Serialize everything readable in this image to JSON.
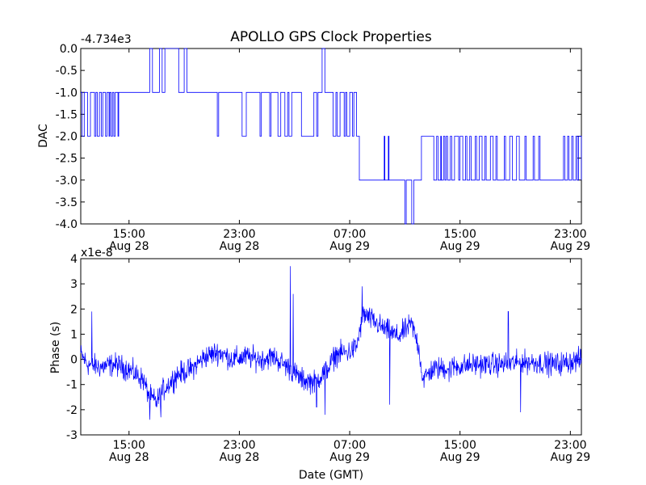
{
  "figure_title": "APOLLO GPS Clock Properties",
  "chart_data": [
    {
      "type": "line",
      "title": "APOLLO GPS Clock Properties",
      "ylabel": "DAC",
      "xlabel": "",
      "offset_label": "-4.734e3",
      "ylim": [
        -4.0,
        0.0
      ],
      "xlim_hours": [
        11.5,
        47.8
      ],
      "y_ticks": [
        0.0,
        -0.5,
        -1.0,
        -1.5,
        -2.0,
        -2.5,
        -3.0,
        -3.5,
        -4.0
      ],
      "y_tick_labels": [
        "0.0",
        "-0.5",
        "-1.0",
        "-1.5",
        "-2.0",
        "-2.5",
        "-3.0",
        "-3.5",
        "-4.0"
      ],
      "x_ticks_hours": [
        15,
        23,
        31,
        39,
        47
      ],
      "x_tick_labels": [
        {
          "time": "15:00",
          "date": "Aug 28"
        },
        {
          "time": "23:00",
          "date": "Aug 28"
        },
        {
          "time": "07:00",
          "date": "Aug 29"
        },
        {
          "time": "15:00",
          "date": "Aug 29"
        },
        {
          "time": "23:00",
          "date": "Aug 29"
        }
      ],
      "series": [
        {
          "name": "DAC",
          "color": "#0000ff",
          "steps": [
            [
              11.5,
              -1
            ],
            [
              11.6,
              -2
            ],
            [
              11.75,
              -1
            ],
            [
              12.0,
              -2
            ],
            [
              12.2,
              -1
            ],
            [
              12.5,
              -2
            ],
            [
              12.6,
              -1
            ],
            [
              12.7,
              -2
            ],
            [
              12.85,
              -1
            ],
            [
              13.0,
              -2
            ],
            [
              13.1,
              -1
            ],
            [
              13.3,
              -2
            ],
            [
              13.4,
              -1
            ],
            [
              13.55,
              -2
            ],
            [
              13.6,
              -1
            ],
            [
              13.7,
              -2
            ],
            [
              13.8,
              -1
            ],
            [
              13.9,
              -2
            ],
            [
              14.0,
              -1
            ],
            [
              14.2,
              -2
            ],
            [
              14.25,
              -1
            ],
            [
              16.5,
              0
            ],
            [
              16.7,
              -1
            ],
            [
              17.2,
              0
            ],
            [
              17.4,
              -1
            ],
            [
              17.6,
              0
            ],
            [
              18.6,
              -1
            ],
            [
              19.0,
              0
            ],
            [
              19.2,
              -1
            ],
            [
              21.4,
              -2
            ],
            [
              21.5,
              -1
            ],
            [
              23.2,
              -2
            ],
            [
              23.5,
              -1
            ],
            [
              24.5,
              -2
            ],
            [
              24.6,
              -1
            ],
            [
              25.2,
              -2
            ],
            [
              25.3,
              -1
            ],
            [
              25.8,
              -2
            ],
            [
              26.0,
              -1
            ],
            [
              26.3,
              -2
            ],
            [
              26.5,
              -1
            ],
            [
              26.6,
              -2
            ],
            [
              26.8,
              -1
            ],
            [
              27.5,
              -2
            ],
            [
              28.4,
              -1
            ],
            [
              28.6,
              -2
            ],
            [
              28.7,
              -1
            ],
            [
              29.0,
              0
            ],
            [
              29.2,
              -1
            ],
            [
              29.8,
              -2
            ],
            [
              30.0,
              -1
            ],
            [
              30.1,
              -2
            ],
            [
              30.3,
              -1
            ],
            [
              30.6,
              -2
            ],
            [
              30.7,
              -1
            ],
            [
              30.8,
              -2
            ],
            [
              31.0,
              -1
            ],
            [
              31.2,
              -2
            ],
            [
              31.3,
              -1
            ],
            [
              31.5,
              -2
            ],
            [
              31.7,
              -3
            ],
            [
              33.5,
              -2
            ],
            [
              33.55,
              -3
            ],
            [
              33.8,
              -2
            ],
            [
              33.85,
              -3
            ],
            [
              35.0,
              -4
            ],
            [
              35.1,
              -3
            ],
            [
              35.5,
              -4
            ],
            [
              35.65,
              -3
            ],
            [
              36.2,
              -2
            ],
            [
              37.1,
              -3
            ],
            [
              37.3,
              -2
            ],
            [
              37.4,
              -3
            ],
            [
              37.6,
              -2
            ],
            [
              37.65,
              -3
            ],
            [
              37.8,
              -2
            ],
            [
              37.9,
              -3
            ],
            [
              38.0,
              -2
            ],
            [
              38.1,
              -3
            ],
            [
              38.3,
              -2
            ],
            [
              38.4,
              -3
            ],
            [
              38.6,
              -2
            ],
            [
              38.9,
              -3
            ],
            [
              39.0,
              -2
            ],
            [
              39.2,
              -3
            ],
            [
              39.4,
              -2
            ],
            [
              39.5,
              -3
            ],
            [
              39.7,
              -2
            ],
            [
              39.8,
              -3
            ],
            [
              40.1,
              -2
            ],
            [
              40.2,
              -3
            ],
            [
              40.4,
              -2
            ],
            [
              40.6,
              -3
            ],
            [
              40.8,
              -2
            ],
            [
              40.9,
              -3
            ],
            [
              41.2,
              -2
            ],
            [
              41.4,
              -3
            ],
            [
              41.6,
              -2
            ],
            [
              41.7,
              -3
            ],
            [
              42.2,
              -2
            ],
            [
              42.3,
              -3
            ],
            [
              42.6,
              -2
            ],
            [
              42.8,
              -3
            ],
            [
              43.1,
              -2
            ],
            [
              43.3,
              -3
            ],
            [
              43.7,
              -2
            ],
            [
              43.8,
              -3
            ],
            [
              44.3,
              -2
            ],
            [
              44.4,
              -3
            ],
            [
              44.7,
              -2
            ],
            [
              44.8,
              -3
            ],
            [
              46.5,
              -2
            ],
            [
              46.6,
              -3
            ],
            [
              46.8,
              -2
            ],
            [
              46.9,
              -3
            ],
            [
              47.1,
              -2
            ],
            [
              47.2,
              -3
            ],
            [
              47.4,
              -2
            ],
            [
              47.5,
              -3
            ],
            [
              47.6,
              -2
            ],
            [
              47.8,
              -3
            ]
          ]
        }
      ]
    },
    {
      "type": "line",
      "title": "",
      "ylabel": "Phase (s)",
      "xlabel": "Date (GMT)",
      "offset_label": "x1e-8",
      "ylim": [
        -3,
        4
      ],
      "xlim_hours": [
        11.5,
        47.8
      ],
      "y_ticks": [
        4,
        3,
        2,
        1,
        0,
        -1,
        -2,
        -3
      ],
      "y_tick_labels": [
        "4",
        "3",
        "2",
        "1",
        "0",
        "-1",
        "-2",
        "-3"
      ],
      "x_ticks_hours": [
        15,
        23,
        31,
        39,
        47
      ],
      "x_tick_labels": [
        {
          "time": "15:00",
          "date": "Aug 28"
        },
        {
          "time": "23:00",
          "date": "Aug 28"
        },
        {
          "time": "07:00",
          "date": "Aug 29"
        },
        {
          "time": "15:00",
          "date": "Aug 29"
        },
        {
          "time": "23:00",
          "date": "Aug 29"
        }
      ],
      "series": [
        {
          "name": "Phase",
          "color": "#0000ff",
          "baseline": [
            [
              11.5,
              0.2
            ],
            [
              12.0,
              -0.2
            ],
            [
              13.0,
              -0.3
            ],
            [
              14.0,
              -0.2
            ],
            [
              15.0,
              -0.4
            ],
            [
              16.0,
              -0.8
            ],
            [
              16.5,
              -1.5
            ],
            [
              17.0,
              -1.7
            ],
            [
              17.5,
              -1.2
            ],
            [
              18.5,
              -0.6
            ],
            [
              19.5,
              -0.4
            ],
            [
              20.5,
              0.1
            ],
            [
              21.5,
              0.3
            ],
            [
              22.5,
              0.0
            ],
            [
              23.5,
              0.1
            ],
            [
              24.5,
              0.0
            ],
            [
              25.5,
              0.1
            ],
            [
              26.5,
              -0.3
            ],
            [
              27.5,
              -0.8
            ],
            [
              28.5,
              -0.9
            ],
            [
              29.5,
              -0.3
            ],
            [
              30.0,
              0.2
            ],
            [
              31.0,
              0.3
            ],
            [
              31.5,
              0.5
            ],
            [
              32.0,
              1.8
            ],
            [
              32.5,
              1.6
            ],
            [
              33.5,
              1.2
            ],
            [
              34.5,
              0.9
            ],
            [
              35.5,
              1.4
            ],
            [
              36.0,
              0.5
            ],
            [
              36.3,
              -0.8
            ],
            [
              37.0,
              -0.4
            ],
            [
              38.5,
              -0.3
            ],
            [
              40.0,
              -0.2
            ],
            [
              42.0,
              -0.2
            ],
            [
              44.0,
              -0.1
            ],
            [
              46.0,
              -0.2
            ],
            [
              47.8,
              0.0
            ]
          ],
          "noise_amplitude": 0.45,
          "spikes": [
            [
              12.3,
              1.9
            ],
            [
              16.5,
              -2.4
            ],
            [
              17.3,
              -2.3
            ],
            [
              26.7,
              3.7
            ],
            [
              26.9,
              2.6
            ],
            [
              28.6,
              -1.9
            ],
            [
              29.2,
              -2.2
            ],
            [
              31.9,
              2.9
            ],
            [
              33.9,
              -1.8
            ],
            [
              38.2,
              -0.9
            ],
            [
              42.5,
              1.9
            ],
            [
              43.4,
              -2.1
            ]
          ]
        }
      ]
    }
  ]
}
